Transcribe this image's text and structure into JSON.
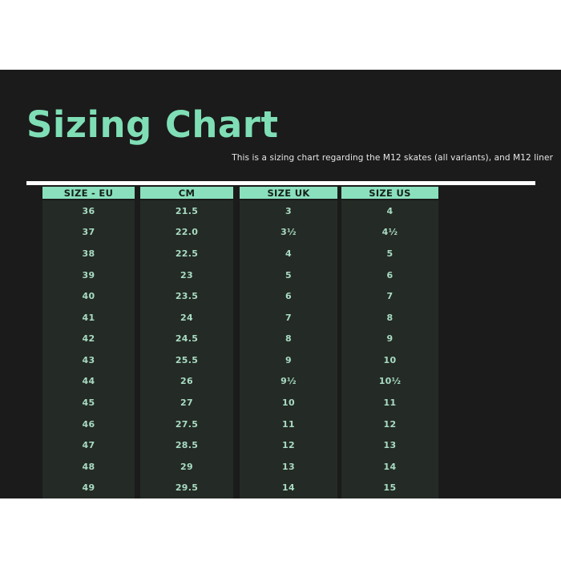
{
  "header": {
    "title": "Sizing Chart",
    "subtitle": "This is a sizing chart regarding the M12 skates (all variants), and M12 liner"
  },
  "colors": {
    "page_background": "#ffffff",
    "panel_background": "#1b1b1b",
    "title_green": "#7fdeb5",
    "header_green": "#8ae0bd",
    "header_text": "#15201b",
    "value_text": "#a9dcc4",
    "column_background": "#242a25",
    "divider": "#ffffff",
    "subtitle_text": "#e6e6e6"
  },
  "chart_data": {
    "type": "table",
    "title": "Sizing Chart",
    "columns": [
      "SIZE - EU",
      "CM",
      "SIZE UK",
      "SIZE US"
    ],
    "rows": [
      [
        "36",
        "21.5",
        "3",
        "4"
      ],
      [
        "37",
        "22.0",
        "3½",
        "4½"
      ],
      [
        "38",
        "22.5",
        "4",
        "5"
      ],
      [
        "39",
        "23",
        "5",
        "6"
      ],
      [
        "40",
        "23.5",
        "6",
        "7"
      ],
      [
        "41",
        "24",
        "7",
        "8"
      ],
      [
        "42",
        "24.5",
        "8",
        "9"
      ],
      [
        "43",
        "25.5",
        "9",
        "10"
      ],
      [
        "44",
        "26",
        "9½",
        "10½"
      ],
      [
        "45",
        "27",
        "10",
        "11"
      ],
      [
        "46",
        "27.5",
        "11",
        "12"
      ],
      [
        "47",
        "28.5",
        "12",
        "13"
      ],
      [
        "48",
        "29",
        "13",
        "14"
      ],
      [
        "49",
        "29.5",
        "14",
        "15"
      ]
    ]
  }
}
